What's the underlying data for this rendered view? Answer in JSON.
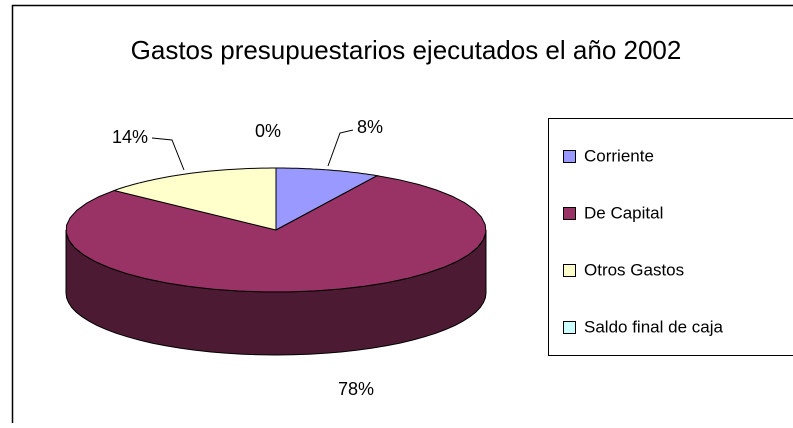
{
  "chart_data": {
    "type": "pie",
    "title": "Gastos presupuestarios ejecutados el año 2002",
    "categories": [
      "Corriente",
      "De Capital",
      "Otros Gastos",
      "Saldo final de caja"
    ],
    "values": [
      8,
      78,
      14,
      0
    ],
    "value_labels": [
      "8%",
      "78%",
      "14%",
      "0%"
    ],
    "colors": [
      "#9999ff",
      "#993366",
      "#ffffcc",
      "#ccffff"
    ],
    "legend": "right"
  }
}
